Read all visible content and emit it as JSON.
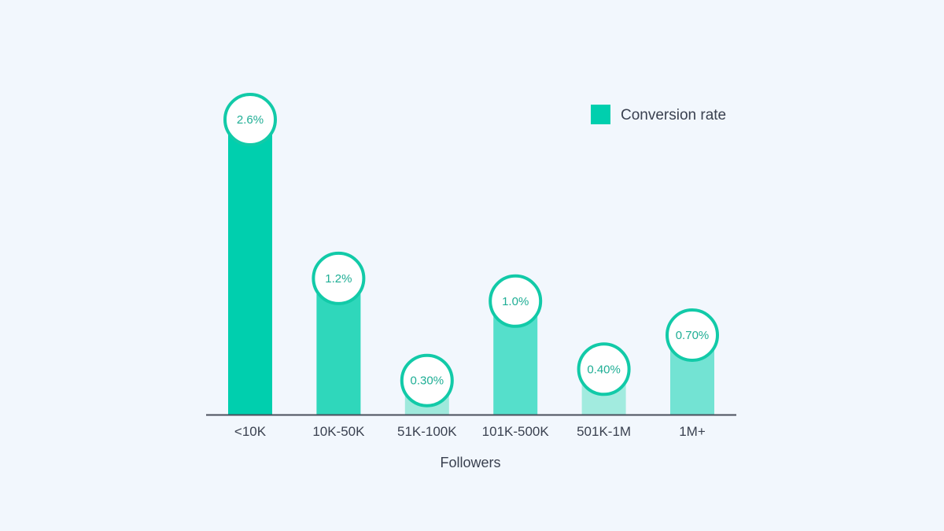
{
  "chart_data": {
    "type": "bar",
    "categories": [
      "<10K",
      "10K-50K",
      "51K-100K",
      "101K-500K",
      "501K-1M",
      "1M+"
    ],
    "series": [
      {
        "name": "Conversion rate",
        "values": [
          2.6,
          1.2,
          0.3,
          1.0,
          0.4,
          0.7
        ],
        "data_labels": [
          "2.6%",
          "1.2%",
          "0.30%",
          "1.0%",
          "0.40%",
          "0.70%"
        ]
      }
    ],
    "xlabel": "Followers",
    "ylabel": "",
    "ylim": [
      0,
      2.6
    ],
    "grid": false,
    "legend_position": "top-right",
    "colors": {
      "bars": [
        "#00cfae",
        "#2fd7bb",
        "#9fe9dc",
        "#55dfcb",
        "#a2ebdf",
        "#73e3d3"
      ],
      "legend_swatch": "#00cfae",
      "bubble_stroke": "#12caa8",
      "bubble_text": "#1fae95",
      "axis": "#4a4f5c"
    }
  }
}
